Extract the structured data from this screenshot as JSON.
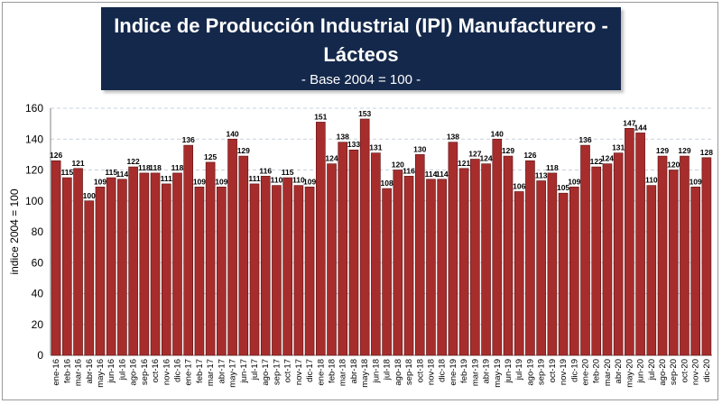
{
  "title_line1": "Indice de Producción Industrial (IPI) Manufacturero -",
  "title_line2": "Lácteos",
  "subtitle": "- Base 2004 = 100 -",
  "chart_data": {
    "type": "bar",
    "ylabel": "indice 2004 = 100",
    "ylim": [
      0,
      160
    ],
    "yticks": [
      0,
      20,
      40,
      60,
      80,
      100,
      120,
      140,
      160
    ],
    "grid": "horizontal dashed",
    "bar_color": "#a72d2d",
    "categories": [
      "ene-16",
      "feb-16",
      "mar-16",
      "abr-16",
      "may-16",
      "jun-16",
      "jul-16",
      "ago-16",
      "sep-16",
      "oct-16",
      "nov-16",
      "dic-16",
      "ene-17",
      "feb-17",
      "mar-17",
      "abr-17",
      "may-17",
      "jun-17",
      "jul-17",
      "ago-17",
      "sep-17",
      "oct-17",
      "nov-17",
      "dic-17",
      "ene-18",
      "feb-18",
      "mar-18",
      "abr-18",
      "may-18",
      "jun-18",
      "jul-18",
      "ago-18",
      "sep-18",
      "oct-18",
      "nov-18",
      "dic-18",
      "ene-19",
      "feb-19",
      "mar-19",
      "abr-19",
      "may-19",
      "jun-19",
      "jul-19",
      "ago-19",
      "sep-19",
      "oct-19",
      "nov-19",
      "dic-19",
      "ene-20",
      "feb-20",
      "mar-20",
      "abr-20",
      "may-20",
      "jun-20",
      "jul-20",
      "ago-20",
      "sep-20",
      "oct-20",
      "nov-20",
      "dic-20"
    ],
    "values": [
      126,
      115,
      121,
      100,
      109,
      115,
      114,
      122,
      118,
      118,
      111,
      118,
      136,
      109,
      125,
      109,
      140,
      129,
      111,
      116,
      110,
      115,
      110,
      109,
      151,
      124,
      138,
      133,
      153,
      131,
      108,
      120,
      116,
      130,
      114,
      114,
      138,
      121,
      127,
      124,
      140,
      129,
      106,
      126,
      113,
      118,
      105,
      109,
      136,
      122,
      124,
      131,
      147,
      144,
      110,
      129,
      120,
      129,
      109,
      128
    ]
  }
}
